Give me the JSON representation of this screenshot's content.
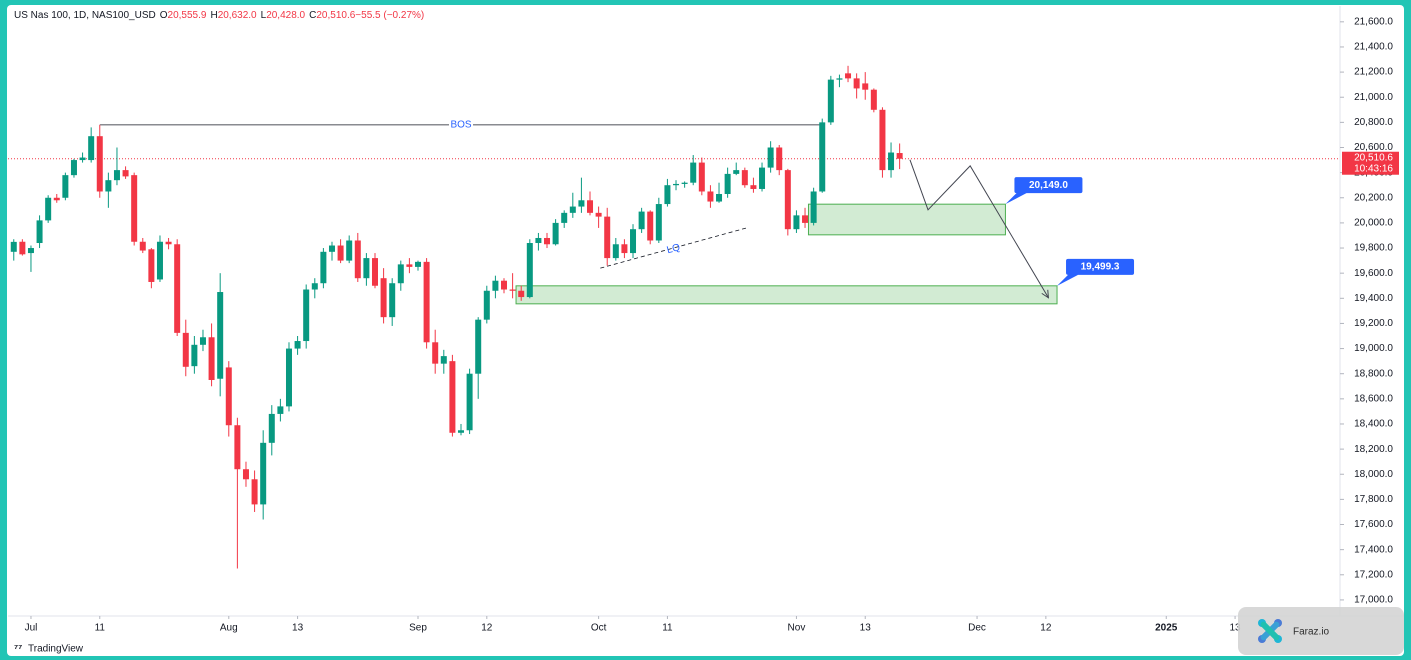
{
  "chart_data": {
    "type": "candlestick",
    "title": "US Nas 100, 1D, NAS100_USD",
    "ohlc": [
      {
        "key": "O",
        "value": "20,555.9"
      },
      {
        "key": "H",
        "value": "20,632.0"
      },
      {
        "key": "L",
        "value": "20,428.0"
      },
      {
        "key": "C",
        "value": "20,510.6"
      },
      {
        "key": "",
        "value": "−55.5 (−0.27%)"
      }
    ],
    "up_color": "#089981",
    "down_color": "#f23645",
    "open": [
      19770,
      19850,
      19760,
      19840,
      20020,
      20200,
      20200,
      20380,
      20500,
      20500,
      20690,
      20250,
      20340,
      20420,
      20380,
      19850,
      19790,
      19550,
      19850,
      19830,
      19125,
      18860,
      19030,
      19090,
      18760,
      18850,
      18390,
      18040,
      17960,
      17760,
      18250,
      18480,
      18540,
      19000,
      19060,
      19470,
      19520,
      19770,
      19820,
      19700,
      19860,
      19560,
      19720,
      19560,
      19250,
      19520,
      19670,
      19650,
      19690,
      19050,
      18880,
      18900,
      18330,
      18350,
      18800,
      19230,
      19460,
      19540,
      19470,
      19460,
      19410,
      19840,
      19880,
      19830,
      20000,
      20080,
      20130,
      20180,
      20080,
      20050,
      19720,
      19830,
      19760,
      19950,
      20090,
      19860,
      20150,
      20300,
      20310,
      20320,
      20480,
      20250,
      20170,
      20230,
      20390,
      20420,
      20300,
      20270,
      20440,
      20600,
      20420,
      19950,
      20060,
      20000,
      20250,
      20800,
      21140,
      21190,
      21150,
      21110,
      21060,
      20900,
      20420,
      20555.9
    ],
    "high": [
      19870,
      19870,
      19820,
      20060,
      20220,
      20230,
      20400,
      20510,
      20560,
      20760,
      20780,
      20400,
      20600,
      20450,
      20400,
      19880,
      19800,
      19900,
      19880,
      19870,
      19230,
      19100,
      19150,
      19200,
      19600,
      18900,
      18450,
      18100,
      18030,
      18350,
      18550,
      18600,
      19050,
      19100,
      19510,
      19560,
      19800,
      19850,
      19870,
      19900,
      19920,
      19760,
      19760,
      19640,
      19560,
      19700,
      19720,
      19700,
      19720,
      19150,
      18990,
      18950,
      18400,
      18840,
      19250,
      19500,
      19580,
      19560,
      19600,
      19500,
      19870,
      19920,
      19920,
      20030,
      20100,
      20240,
      20360,
      20250,
      20130,
      20120,
      19880,
      19870,
      19990,
      20120,
      20100,
      20200,
      20350,
      20340,
      20330,
      20540,
      20520,
      20300,
      20320,
      20440,
      20480,
      20440,
      20360,
      20480,
      20650,
      20620,
      20430,
      20100,
      20120,
      20280,
      20830,
      21170,
      21180,
      21250,
      21190,
      21200,
      21070,
      20920,
      20640,
      20632
    ],
    "low": [
      19700,
      19740,
      19610,
      19800,
      20000,
      20160,
      20180,
      20360,
      20480,
      20480,
      20200,
      20120,
      20300,
      20350,
      19820,
      19760,
      19480,
      19530,
      19790,
      19100,
      18780,
      18800,
      18980,
      18700,
      18620,
      18300,
      17250,
      17900,
      17700,
      17640,
      18150,
      18420,
      18500,
      18950,
      19000,
      19400,
      19480,
      19700,
      19680,
      19680,
      19530,
      19500,
      19480,
      19200,
      19180,
      19460,
      19600,
      19620,
      19000,
      18800,
      18800,
      18300,
      18310,
      18320,
      18600,
      19200,
      19400,
      19440,
      19400,
      19380,
      19400,
      19780,
      19800,
      19820,
      19960,
      20040,
      20080,
      20060,
      19960,
      19660,
      19700,
      19720,
      19720,
      19920,
      19830,
      19840,
      20130,
      20260,
      20280,
      20300,
      20220,
      20120,
      20160,
      20200,
      20380,
      20280,
      20240,
      20250,
      20400,
      20380,
      19900,
      19920,
      19960,
      19980,
      20240,
      20780,
      21080,
      21120,
      20990,
      20980,
      20880,
      20360,
      20360,
      20428
    ],
    "close": [
      19849,
      19750,
      19800,
      20020,
      20200,
      20180,
      20380,
      20500,
      20520,
      20690,
      20250,
      20340,
      20420,
      20370,
      19850,
      19780,
      19530,
      19850,
      19830,
      19125,
      18855,
      19030,
      19090,
      18750,
      19450,
      18390,
      18040,
      17960,
      17760,
      18250,
      18480,
      18540,
      19000,
      19060,
      19470,
      19520,
      19770,
      19820,
      19700,
      19860,
      19560,
      19720,
      19500,
      19250,
      19520,
      19670,
      19650,
      19690,
      19050,
      18880,
      18940,
      18330,
      18350,
      18800,
      19230,
      19460,
      19540,
      19470,
      19460,
      19410,
      19840,
      19880,
      19830,
      20000,
      20080,
      20130,
      20180,
      20080,
      20050,
      19720,
      19830,
      19760,
      19950,
      20090,
      19860,
      20150,
      20300,
      20310,
      20320,
      20480,
      20250,
      20170,
      20230,
      20390,
      20420,
      20300,
      20270,
      20440,
      20600,
      20420,
      19950,
      20060,
      20000,
      20250,
      20800,
      21140,
      21150,
      21150,
      21070,
      21060,
      20900,
      20420,
      20560,
      20510.6
    ],
    "xlim": [
      -1.6,
      154.2
    ],
    "xticks": [
      {
        "value": 2,
        "label": "Jul"
      },
      {
        "value": 10,
        "label": "11"
      },
      {
        "value": 25,
        "label": "Aug"
      },
      {
        "value": 33,
        "label": "13"
      },
      {
        "value": 47,
        "label": "Sep"
      },
      {
        "value": 55,
        "label": "12"
      },
      {
        "value": 68,
        "label": "Oct"
      },
      {
        "value": 76,
        "label": "11"
      },
      {
        "value": 91,
        "label": "Nov"
      },
      {
        "value": 99,
        "label": "13"
      },
      {
        "value": 112,
        "label": "Dec"
      },
      {
        "value": 120,
        "label": "12"
      },
      {
        "value": 134,
        "label": "2025"
      },
      {
        "value": 142,
        "label": "13"
      }
    ],
    "ylim": [
      16880,
      21710
    ],
    "yticks": [
      {
        "value": 17000,
        "label": "17,000.0"
      },
      {
        "value": 17200,
        "label": "17,200.0"
      },
      {
        "value": 17400,
        "label": "17,400.0"
      },
      {
        "value": 17600,
        "label": "17,600.0"
      },
      {
        "value": 17800,
        "label": "17,800.0"
      },
      {
        "value": 18000,
        "label": "18,000.0"
      },
      {
        "value": 18200,
        "label": "18,200.0"
      },
      {
        "value": 18400,
        "label": "18,400.0"
      },
      {
        "value": 18600,
        "label": "18,600.0"
      },
      {
        "value": 18800,
        "label": "18,800.0"
      },
      {
        "value": 19000,
        "label": "19,000.0"
      },
      {
        "value": 19200,
        "label": "19,200.0"
      },
      {
        "value": 19400,
        "label": "19,400.0"
      },
      {
        "value": 19600,
        "label": "19,600.0"
      },
      {
        "value": 19800,
        "label": "19,800.0"
      },
      {
        "value": 20000,
        "label": "20,000.0"
      },
      {
        "value": 20200,
        "label": "20,200.0"
      },
      {
        "value": 20400,
        "label": "20,400.0"
      },
      {
        "value": 20600,
        "label": "20,600.0"
      },
      {
        "value": 20800,
        "label": "20,800.0"
      },
      {
        "value": 21000,
        "label": "21,000.0"
      },
      {
        "value": 21200,
        "label": "21,200.0"
      },
      {
        "value": 21400,
        "label": "21,400.0"
      },
      {
        "value": 21600,
        "label": "21,600.0"
      }
    ],
    "grid": false,
    "last_price": {
      "value": 20510.6,
      "label": "20,510.6",
      "countdown": "10:43:16"
    },
    "bos": {
      "label": "BOS",
      "price": 20780,
      "x": [
        10,
        94
      ]
    },
    "lq": {
      "label": "LQ",
      "x": [
        68.2,
        85.2
      ],
      "y": [
        19640,
        19960
      ]
    },
    "zones": [
      {
        "label": "20,149.0",
        "top": 20149,
        "bottom": 19905,
        "x": [
          92.4,
          115.3
        ]
      },
      {
        "label": "19,499.3",
        "top": 19499.3,
        "bottom": 19356,
        "x": [
          58.4,
          121.3
        ]
      }
    ],
    "projection": {
      "x": [
        104.2,
        106.3,
        111.2,
        120.3
      ],
      "y": [
        20502,
        20104,
        20454,
        19404
      ]
    },
    "brand": "TradingView",
    "watermark": "Faraz.io"
  }
}
